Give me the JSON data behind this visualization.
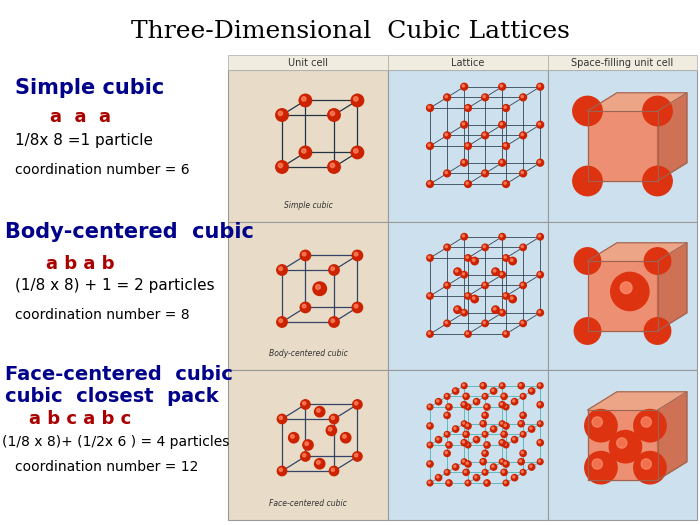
{
  "title": "Three-Dimensional  Cubic Lattices",
  "title_fontsize": 18,
  "title_color": "#000000",
  "title_font": "serif",
  "bg_color": "#ffffff",
  "table_bg_beige": "#e8dcc8",
  "table_bg_blue": "#cce0ee",
  "col_headers": [
    "Unit cell",
    "Lattice",
    "Space-filling unit cell"
  ],
  "rows": [
    {
      "label1": "Simple cubic",
      "label1_color": "#00008B",
      "label1_size": 15,
      "label2": "a  a  a",
      "label2_color": "#AA0000",
      "label2_size": 13,
      "label3": "1/8x 8 =1 particle",
      "label3_color": "#000000",
      "label3_size": 11,
      "label4": "coordination number = 6",
      "label4_color": "#000000",
      "label4_size": 10,
      "cell_label": "Simple cubic"
    },
    {
      "label1": "Body-centered  cubic",
      "label1_color": "#00008B",
      "label1_size": 15,
      "label2": "a b a b",
      "label2_color": "#AA0000",
      "label2_size": 13,
      "label3": "(1/8 x 8) + 1 = 2 particles",
      "label3_color": "#000000",
      "label3_size": 11,
      "label4": "coordination number = 8",
      "label4_color": "#000000",
      "label4_size": 10,
      "cell_label": "Body-centered cubic"
    },
    {
      "label1": "Face-centered  cubic\ncubic  closest  pack",
      "label1_color": "#00008B",
      "label1_size": 14,
      "label2": "a b c a b c",
      "label2_color": "#AA0000",
      "label2_size": 13,
      "label3": "(1/8 x 8)+ (1/2x 6 ) = 4 particles",
      "label3_color": "#000000",
      "label3_size": 10,
      "label4": "coordination number = 12",
      "label4_color": "#000000",
      "label4_size": 10,
      "cell_label": "Face-centered cubic"
    }
  ]
}
